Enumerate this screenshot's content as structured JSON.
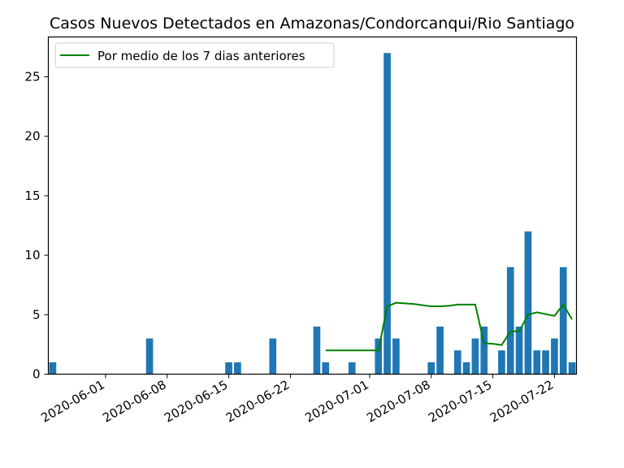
{
  "chart_data": {
    "type": "bar",
    "title": "Casos Nuevos Detectados en Amazonas/Condorcanqui/Rio Santiago",
    "xlabel": "",
    "ylabel": "",
    "x_tick_labels": [
      "2020-06-01",
      "2020-06-08",
      "2020-06-15",
      "2020-06-22",
      "2020-07-01",
      "2020-07-08",
      "2020-07-15",
      "2020-07-22"
    ],
    "y_ticks": [
      0,
      5,
      10,
      15,
      20,
      25
    ],
    "ylim": [
      0,
      28.35
    ],
    "xlim": [
      "2020-05-26",
      "2020-07-24"
    ],
    "grid": false,
    "legend_position": "top-left",
    "colors": {
      "bar": "#1f77b4",
      "line": "#008000"
    },
    "series": [
      {
        "type": "bar",
        "x": [
          "2020-05-26",
          "2020-06-06",
          "2020-06-15",
          "2020-06-16",
          "2020-06-20",
          "2020-06-25",
          "2020-06-26",
          "2020-06-29",
          "2020-07-02",
          "2020-07-03",
          "2020-07-04",
          "2020-07-08",
          "2020-07-09",
          "2020-07-11",
          "2020-07-12",
          "2020-07-13",
          "2020-07-14",
          "2020-07-16",
          "2020-07-17",
          "2020-07-18",
          "2020-07-19",
          "2020-07-20",
          "2020-07-21",
          "2020-07-22",
          "2020-07-23",
          "2020-07-24"
        ],
        "values": [
          1,
          3,
          1,
          1,
          3,
          4,
          1,
          1,
          3,
          27,
          3,
          1,
          4,
          2,
          1,
          3,
          4,
          2,
          9,
          4,
          12,
          2,
          2,
          3,
          9,
          1
        ]
      },
      {
        "type": "line",
        "name": "Por medio de los 7 dias anteriores",
        "x": [
          "2020-06-26",
          "2020-06-27",
          "2020-06-28",
          "2020-06-29",
          "2020-06-30",
          "2020-07-01",
          "2020-07-02",
          "2020-07-03",
          "2020-07-04",
          "2020-07-05",
          "2020-07-06",
          "2020-07-07",
          "2020-07-08",
          "2020-07-09",
          "2020-07-10",
          "2020-07-11",
          "2020-07-12",
          "2020-07-13",
          "2020-07-14",
          "2020-07-15",
          "2020-07-16",
          "2020-07-17",
          "2020-07-18",
          "2020-07-19",
          "2020-07-20",
          "2020-07-21",
          "2020-07-22",
          "2020-07-23",
          "2020-07-24"
        ],
        "values": [
          2.0,
          2.0,
          2.0,
          2.0,
          2.0,
          2.0,
          2.0,
          5.7,
          6.0,
          5.95,
          5.9,
          5.8,
          5.7,
          5.7,
          5.75,
          5.85,
          5.85,
          5.85,
          2.6,
          2.55,
          2.45,
          3.6,
          3.6,
          5.0,
          5.2,
          5.05,
          4.9,
          5.85,
          4.6
        ]
      }
    ]
  }
}
